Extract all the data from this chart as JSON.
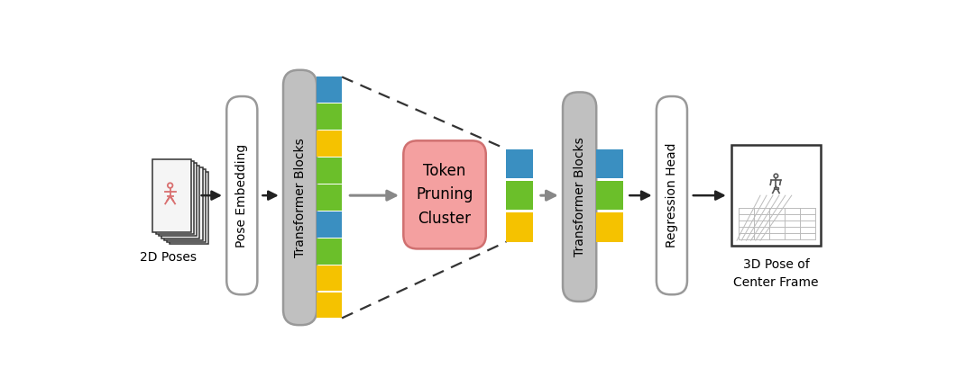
{
  "bg_color": "#ffffff",
  "colors": {
    "yellow": "#F5C200",
    "green": "#6BBF2A",
    "blue": "#3A8FC1",
    "token_pruning_bg": "#F4A0A0",
    "token_pruning_border": "#D07070",
    "transformer_block_bg": "#C0C0C0",
    "transformer_block_border": "#999999",
    "pose_embedding_bg": "#FFFFFF",
    "pose_embedding_border": "#999999",
    "regression_head_bg": "#FFFFFF",
    "regression_head_border": "#999999",
    "arrow_dark": "#222222",
    "arrow_gray": "#888888",
    "dashed_line": "#333333"
  },
  "labels": {
    "input": "2D Poses",
    "pose_embedding": "Pose Embedding",
    "transformer_blocks_1": "Transformer Blocks",
    "token_pruning": "Token\nPruning\nCluster",
    "transformer_blocks_2": "Transformer Blocks",
    "regression_head": "Regression Head",
    "output": "3D Pose of\nCenter Frame"
  },
  "left_tokens": [
    "yellow",
    "yellow",
    "green",
    "blue",
    "green",
    "green",
    "yellow",
    "green",
    "blue"
  ],
  "mid_tokens": [
    "yellow",
    "green",
    "blue"
  ],
  "right_tokens": [
    "yellow",
    "green",
    "blue"
  ]
}
